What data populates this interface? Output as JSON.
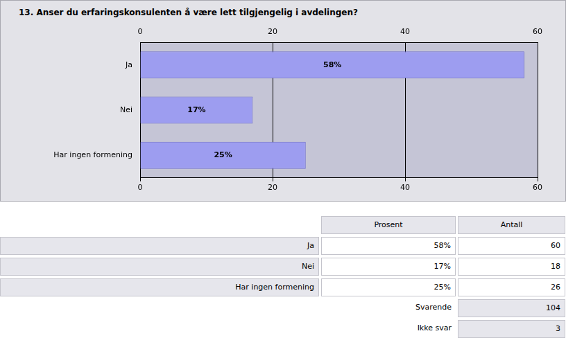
{
  "chart_data": {
    "type": "bar",
    "title": "13. Anser du erfaringskonsulenten å være lett tilgjengelig i avdelingen?",
    "orientation": "horizontal",
    "categories": [
      "Ja",
      "Nei",
      "Har ingen formening"
    ],
    "values": [
      58,
      17,
      25
    ],
    "value_labels": [
      "58%",
      "17%",
      "25%"
    ],
    "data_labels": true,
    "color": "#9d9df0",
    "xlim": [
      0,
      60
    ],
    "xticks": [
      0,
      20,
      40,
      60
    ],
    "grid": true
  },
  "table": {
    "columns": [
      "Prosent",
      "Antall"
    ],
    "rows": [
      {
        "label": "Ja",
        "values": [
          "58%",
          60
        ]
      },
      {
        "label": "Nei",
        "values": [
          "17%",
          18
        ]
      },
      {
        "label": "Har ingen formening",
        "values": [
          "25%",
          26
        ]
      }
    ],
    "summary": [
      {
        "label": "Svarende",
        "value": 104
      },
      {
        "label": "Ikke svar",
        "value": 3
      }
    ]
  }
}
